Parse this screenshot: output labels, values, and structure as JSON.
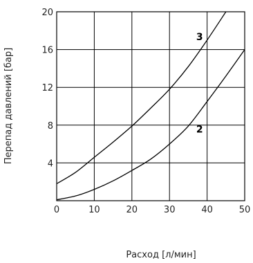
{
  "chart_data": {
    "type": "line",
    "xlabel": "Расход [л/мин]",
    "ylabel": "Перепад давлений [бар]",
    "xlim": [
      0,
      50
    ],
    "ylim": [
      0,
      20
    ],
    "xticks": [
      "0",
      "10",
      "20",
      "30",
      "40",
      "50"
    ],
    "yticks": [
      "4",
      "8",
      "12",
      "16",
      "20"
    ],
    "grid": true,
    "series": [
      {
        "name": "3",
        "x": [
          0,
          5,
          10,
          15,
          20,
          25,
          30,
          35,
          40,
          45
        ],
        "y": [
          1.8,
          3.0,
          4.6,
          6.2,
          7.9,
          9.8,
          11.8,
          14.2,
          17.0,
          20.0
        ]
      },
      {
        "name": "2",
        "x": [
          0,
          5,
          10,
          15,
          20,
          25,
          30,
          35,
          40,
          45,
          50
        ],
        "y": [
          0.1,
          0.5,
          1.2,
          2.1,
          3.2,
          4.4,
          6.0,
          7.9,
          10.5,
          13.2,
          16.0
        ]
      }
    ],
    "series_label_at": [
      {
        "x": 38,
        "y": 17.0
      },
      {
        "x": 38,
        "y": 7.2
      }
    ]
  }
}
